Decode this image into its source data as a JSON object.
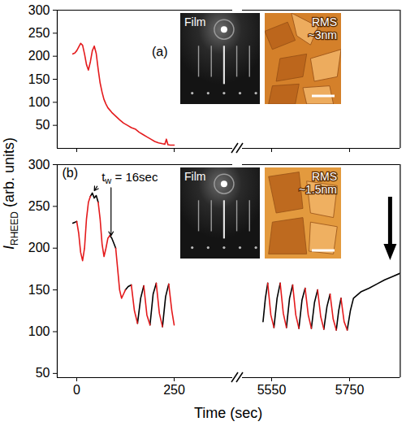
{
  "chart_data": {
    "type": "line",
    "ylabel": [
      "I",
      "RHEED",
      " (arb. units)"
    ],
    "xlabel": "Time (sec)",
    "x_segments": [
      {
        "xlim": [
          -50,
          400
        ],
        "xticks": [
          0,
          250
        ]
      },
      {
        "xlim": [
          5475,
          5880
        ],
        "xticks": [
          5550,
          5750
        ]
      }
    ],
    "panels": [
      {
        "label": "(a)",
        "ylim": [
          0,
          300
        ],
        "yticks": [
          50,
          100,
          150,
          200,
          250,
          300
        ],
        "series": [
          {
            "color": "#e41a1c",
            "x": [
              -10,
              -5,
              0,
              5,
              10,
              15,
              20,
              25,
              30,
              35,
              40,
              45,
              50,
              55,
              60,
              65,
              70,
              75,
              80,
              90,
              100,
              110,
              120,
              130,
              140,
              150,
              160,
              170,
              180,
              190,
              200,
              210,
              220,
              226,
              230,
              234,
              240,
              250
            ],
            "values": [
              205,
              207,
              212,
              220,
              228,
              224,
              205,
              182,
              170,
              188,
              212,
              222,
              206,
              172,
              142,
              122,
              106,
              96,
              88,
              78,
              70,
              62,
              55,
              50,
              45,
              42,
              35,
              30,
              25,
              20,
              15,
              12,
              10,
              9,
              20,
              8,
              7,
              7
            ]
          }
        ],
        "insets": [
          {
            "label": "Film"
          },
          {
            "label": [
              "RMS",
              "~3nm"
            ]
          }
        ]
      },
      {
        "label": "(b)",
        "ylim": [
          45,
          300
        ],
        "yticks": [
          50,
          100,
          150,
          200,
          250,
          300
        ],
        "series": [
          {
            "color": "#000000",
            "x": [
              -10,
              -5,
              0,
              null,
              35,
              40,
              45,
              50,
              55,
              null,
              85,
              90,
              95,
              100,
              null,
              125,
              132,
              140,
              null,
              156,
              164,
              172,
              null,
              188,
              196,
              204,
              null,
              220,
              228,
              236,
              null,
              5528,
              5534,
              5540,
              null,
              5556,
              5564,
              5572,
              null,
              5588,
              5596,
              5604,
              null,
              5620,
              5628,
              5636,
              null,
              5652,
              5660,
              5668,
              null,
              5684,
              5692,
              5700,
              null,
              5716,
              5722,
              5728,
              null,
              5744,
              5752,
              5760,
              5780,
              5800,
              5820,
              5840,
              5860,
              5880
            ],
            "values": [
              230,
              231,
              232,
              null,
              262,
              266,
              260,
              263,
              255,
              null,
              215,
              212,
              206,
              200,
              null,
              150,
              154,
              156,
              null,
              110,
              140,
              155,
              null,
              108,
              145,
              158,
              null,
              106,
              142,
              157,
              null,
              112,
              140,
              158,
              null,
              105,
              140,
              158,
              null,
              105,
              140,
              156,
              null,
              104,
              138,
              152,
              null,
              104,
              135,
              150,
              null,
              103,
              130,
              145,
              null,
              102,
              125,
              140,
              null,
              102,
              125,
              140,
              148,
              152,
              157,
              162,
              166,
              170
            ]
          },
          {
            "color": "#e41a1c",
            "x": [
              0,
              5,
              10,
              15,
              20,
              25,
              30,
              35,
              null,
              55,
              60,
              65,
              70,
              75,
              80,
              85,
              null,
              100,
              105,
              110,
              115,
              120,
              125,
              null,
              140,
              148,
              156,
              null,
              172,
              180,
              188,
              null,
              204,
              212,
              220,
              null,
              236,
              244,
              250,
              null,
              5540,
              5548,
              5556,
              null,
              5572,
              5580,
              5588,
              null,
              5604,
              5612,
              5620,
              null,
              5636,
              5644,
              5652,
              null,
              5668,
              5676,
              5684,
              null,
              5700,
              5708,
              5716,
              null,
              5728,
              5736,
              5744
            ],
            "values": [
              232,
              218,
              195,
              185,
              200,
              235,
              255,
              262,
              null,
              255,
              235,
              205,
              190,
              200,
              212,
              215,
              null,
              200,
              175,
              150,
              140,
              145,
              150,
              null,
              156,
              125,
              110,
              null,
              155,
              120,
              108,
              null,
              158,
              122,
              106,
              null,
              157,
              125,
              108,
              null,
              158,
              120,
              105,
              null,
              158,
              122,
              105,
              null,
              156,
              120,
              104,
              null,
              152,
              120,
              104,
              null,
              150,
              118,
              103,
              null,
              145,
              115,
              102,
              null,
              140,
              112,
              102
            ]
          }
        ],
        "insets": [
          {
            "label": "Film"
          },
          {
            "label": [
              "RMS",
              "~1.5nm"
            ]
          }
        ],
        "annotation": {
          "text": [
            "t",
            "w",
            " = 16sec"
          ],
          "x": 65,
          "y": 283,
          "points": [
            {
              "x": 44,
              "y": 268
            },
            {
              "x": 88,
              "y": 214
            }
          ]
        }
      }
    ]
  }
}
